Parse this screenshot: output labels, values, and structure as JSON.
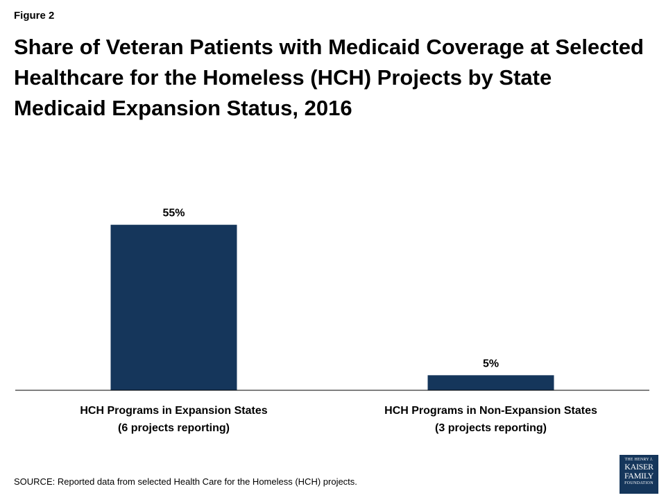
{
  "figure_label": "Figure 2",
  "source": "SOURCE: Reported data from  selected Health Care for the Homeless (HCH) projects.",
  "logo": {
    "line1": "THE HENRY J.",
    "line2": "KAISER",
    "line3": "FAMILY",
    "line4": "FOUNDATION"
  },
  "colors": {
    "bar": "#15365b",
    "axis": "#000000"
  },
  "chart_data": {
    "type": "bar",
    "title": "Share of Veteran Patients with Medicaid Coverage at Selected Healthcare for the Homeless (HCH) Projects by State Medicaid Expansion Status, 2016",
    "categories": [
      [
        "HCH Programs in Expansion States",
        "(6 projects reporting)"
      ],
      [
        "HCH Programs in Non-Expansion States",
        "(3 projects reporting)"
      ]
    ],
    "values": [
      55,
      5
    ],
    "data_labels": [
      "55%",
      "5%"
    ],
    "ylim": [
      0,
      60
    ],
    "xlabel": "",
    "ylabel": "",
    "grid": false,
    "legend": "none"
  }
}
